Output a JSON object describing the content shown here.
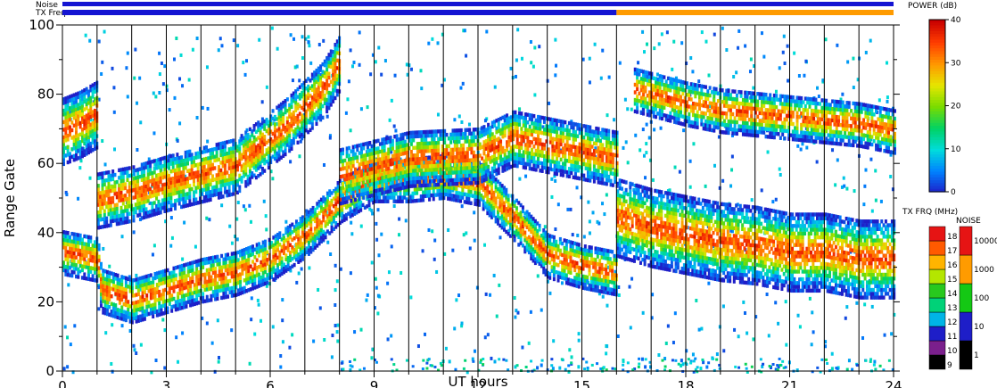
{
  "chart_data": {
    "type": "heatmap",
    "title": "",
    "xlabel": "UT hours",
    "ylabel": "Range Gate",
    "xlim": [
      0,
      24
    ],
    "ylim": [
      0,
      100
    ],
    "x_ticks": [
      "0",
      "3",
      "6",
      "9",
      "12",
      "15",
      "18",
      "21",
      "24"
    ],
    "y_ticks": [
      "0",
      "20",
      "40",
      "60",
      "80",
      "100"
    ],
    "grid": "vertical hourly lines",
    "top_strips": {
      "noise_label": "Noise",
      "txfreq_label": "TX Freq",
      "noise_color": "#1414d2",
      "txfreq_segments": [
        {
          "start": 0,
          "end": 16,
          "color": "#1414d2"
        },
        {
          "start": 16,
          "end": 24,
          "color": "#ff9b00"
        }
      ]
    },
    "power_colorbar": {
      "title": "POWER (dB)",
      "ticks": [
        "0",
        "10",
        "20",
        "30",
        "40"
      ],
      "range": [
        0,
        40
      ]
    },
    "txfreq_colorbar": {
      "title": "TX FRQ (MHz)",
      "labels": [
        "9",
        "10",
        "11",
        "12",
        "13",
        "14",
        "15",
        "16",
        "17",
        "18"
      ],
      "colors": [
        "#000000",
        "#7a1f8c",
        "#1e1ec8",
        "#00b4e6",
        "#00d278",
        "#28c81e",
        "#b4e600",
        "#ffb400",
        "#ff5a00",
        "#e61414"
      ]
    },
    "noise_colorbar": {
      "title": "NOISE",
      "labels": [
        "1",
        "10",
        "100",
        "1000",
        "10000"
      ],
      "colors": [
        "#000000",
        "#1e1ec8",
        "#14c814",
        "#ff9b00",
        "#e61414"
      ]
    },
    "echo_bands": [
      {
        "name": "",
        "points": [
          [
            0,
            35
          ],
          [
            1,
            33
          ],
          [
            1.1,
            24
          ],
          [
            2,
            21
          ],
          [
            3,
            24
          ],
          [
            4,
            27
          ],
          [
            5,
            29
          ],
          [
            6,
            33
          ],
          [
            7,
            40
          ],
          [
            8,
            50
          ],
          [
            9,
            56
          ],
          [
            10,
            56
          ],
          [
            11,
            57
          ],
          [
            12,
            55
          ],
          [
            13,
            45
          ],
          [
            14,
            34
          ],
          [
            15,
            31
          ],
          [
            16,
            29
          ]
        ],
        "width": 4
      },
      {
        "name": "",
        "points": [
          [
            16,
            45
          ],
          [
            17,
            42
          ],
          [
            18,
            40
          ],
          [
            19,
            38
          ],
          [
            20,
            37
          ],
          [
            21,
            35
          ],
          [
            22,
            35
          ],
          [
            23,
            33
          ],
          [
            24,
            33
          ]
        ],
        "width": 7
      },
      {
        "name": "",
        "points": [
          [
            1,
            50
          ],
          [
            2,
            52
          ],
          [
            3,
            55
          ],
          [
            5,
            60
          ],
          [
            6.5,
            72
          ],
          [
            7.5,
            82
          ],
          [
            8,
            90
          ]
        ],
        "width": 5
      },
      {
        "name": "",
        "points": [
          [
            8,
            57
          ],
          [
            10,
            62
          ],
          [
            12,
            63
          ],
          [
            13,
            68
          ],
          [
            14,
            66
          ],
          [
            16,
            62
          ]
        ],
        "width": 5
      },
      {
        "name": "",
        "points": [
          [
            0,
            70
          ],
          [
            0.5,
            72
          ],
          [
            1,
            75
          ]
        ],
        "width": 6
      },
      {
        "name": "",
        "points": [
          [
            16.5,
            82
          ],
          [
            18,
            78
          ],
          [
            19,
            76
          ],
          [
            21,
            74
          ],
          [
            23,
            72
          ],
          [
            24,
            70
          ]
        ],
        "width": 4
      }
    ]
  }
}
